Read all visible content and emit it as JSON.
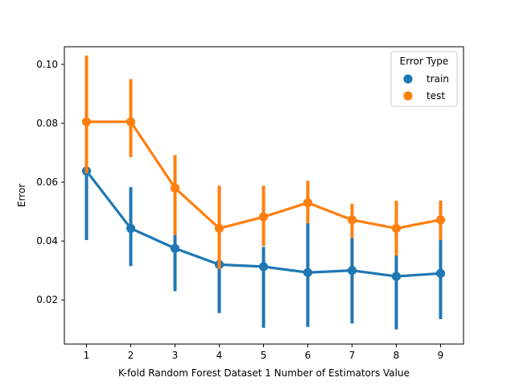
{
  "chart_data": {
    "type": "line",
    "title": "",
    "xlabel": "K-fold Random Forest Dataset 1 Number of Estimators Value",
    "ylabel": "Error",
    "x": [
      1,
      2,
      3,
      4,
      5,
      6,
      7,
      8,
      9
    ],
    "ylim": [
      0.005,
      0.106
    ],
    "yticks": [
      0.02,
      0.04,
      0.06,
      0.08,
      0.1
    ],
    "ytick_labels": [
      "0.02",
      "0.04",
      "0.06",
      "0.08",
      "0.10"
    ],
    "legend": {
      "title": "Error Type",
      "position": "top-right"
    },
    "grid": false,
    "series": [
      {
        "name": "train",
        "color": "#1f77b4",
        "values": [
          0.0638,
          0.0443,
          0.0375,
          0.032,
          0.0313,
          0.0293,
          0.03,
          0.028,
          0.029
        ],
        "ci_low": [
          0.0403,
          0.0315,
          0.023,
          0.0155,
          0.0105,
          0.0108,
          0.012,
          0.01,
          0.0135
        ],
        "ci_high": [
          0.089,
          0.0583,
          0.047,
          0.052,
          0.038,
          0.047,
          0.042,
          0.037,
          0.0405
        ]
      },
      {
        "name": "test",
        "color": "#ff7f0e",
        "values": [
          0.0805,
          0.0805,
          0.058,
          0.0443,
          0.0482,
          0.053,
          0.0472,
          0.0443,
          0.0472
        ],
        "ci_low": [
          0.063,
          0.0685,
          0.042,
          0.0305,
          0.0383,
          0.046,
          0.041,
          0.035,
          0.0403
        ],
        "ci_high": [
          0.103,
          0.095,
          0.0692,
          0.0588,
          0.0588,
          0.0605,
          0.0527,
          0.0537,
          0.0538
        ]
      }
    ]
  }
}
